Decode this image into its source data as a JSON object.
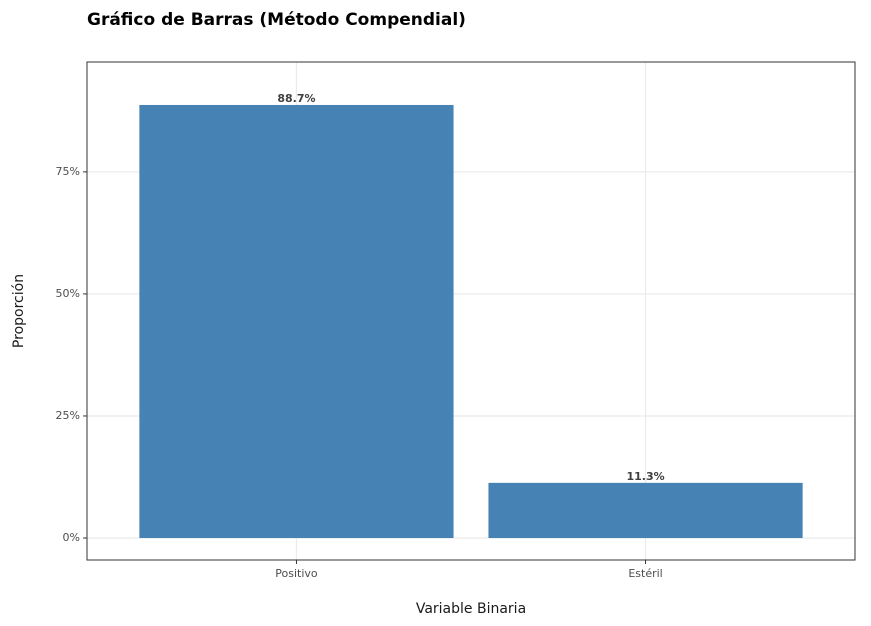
{
  "chart_data": {
    "type": "bar",
    "title": "Gráfico de Barras (Método Compendial)",
    "x_label": "Variable Binaria",
    "y_label": "Proporción",
    "categories": [
      "Positivo",
      "Estéril"
    ],
    "values": [
      88.7,
      11.3
    ],
    "value_labels": [
      "88.7%",
      "11.3%"
    ],
    "color": "#4682b4",
    "ylim": [
      -4.5,
      97.5
    ],
    "yticks": [
      {
        "value": 0,
        "label": "0%"
      },
      {
        "value": 25,
        "label": "25%"
      },
      {
        "value": 50,
        "label": "50%"
      },
      {
        "value": 75,
        "label": "75%"
      }
    ],
    "grid": true
  }
}
